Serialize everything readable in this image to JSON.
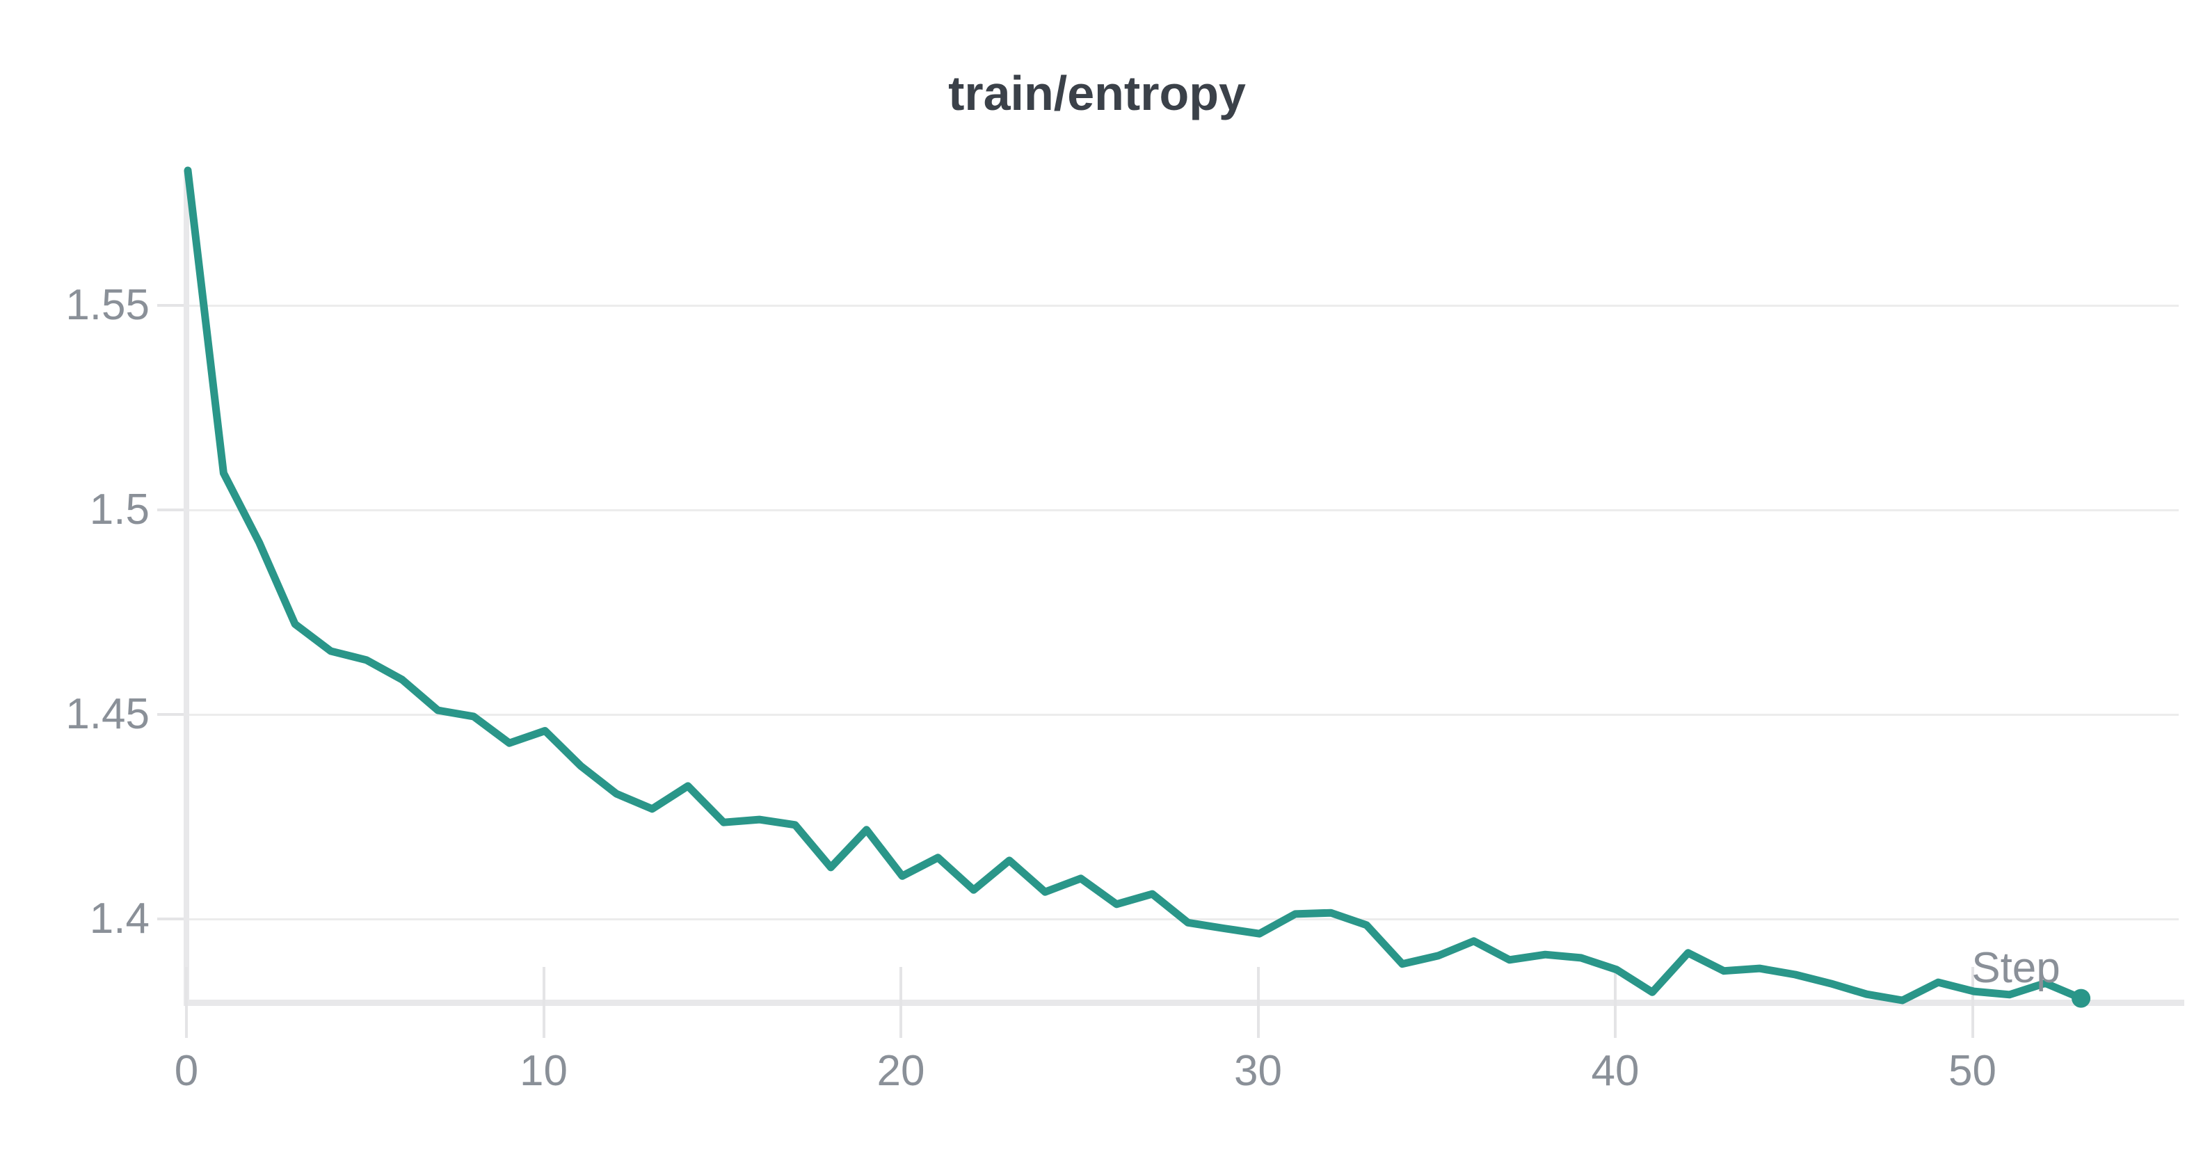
{
  "panel": {
    "background": "#ffffff",
    "title_color": "#3b4149",
    "axis_text_color": "#8a9098",
    "grid_color": "#ececec",
    "axis_line_color": "#e8e8ea",
    "tick_mark_color": "#e4e4e6"
  },
  "chart_data": {
    "type": "line",
    "title": "train/entropy",
    "xlabel": "Step",
    "ylabel": "",
    "legend": "none",
    "grid": "horizontal",
    "xlim": [
      0,
      55.7
    ],
    "ylim": [
      1.3785,
      1.5872
    ],
    "x_ticks": [
      0,
      10,
      20,
      30,
      40,
      50
    ],
    "x_tick_labels": [
      "0",
      "10",
      "20",
      "30",
      "40",
      "50"
    ],
    "y_ticks": [
      1.4,
      1.45,
      1.5,
      1.55
    ],
    "y_tick_labels": [
      "1.4",
      "1.45",
      "1.5",
      "1.55"
    ],
    "endpoint_marker": true,
    "series": [
      {
        "name": "train/entropy",
        "color": "#2a9689",
        "x": [
          0,
          1,
          2,
          3,
          4,
          5,
          6,
          7,
          8,
          9,
          10,
          11,
          12,
          13,
          14,
          15,
          16,
          17,
          18,
          19,
          20,
          21,
          22,
          23,
          24,
          25,
          26,
          27,
          28,
          29,
          30,
          31,
          32,
          33,
          34,
          35,
          36,
          37,
          38,
          39,
          40,
          41,
          42,
          43,
          44,
          45,
          46,
          47,
          48,
          49,
          50,
          51,
          52,
          53
        ],
        "y": [
          1.583,
          1.509,
          1.492,
          1.4721,
          1.4655,
          1.4633,
          1.4585,
          1.451,
          1.4495,
          1.443,
          1.446,
          1.4374,
          1.4306,
          1.4269,
          1.4325,
          1.4236,
          1.4243,
          1.423,
          1.4126,
          1.4218,
          1.4105,
          1.415,
          1.4071,
          1.4143,
          1.4066,
          1.4099,
          1.4036,
          1.4061,
          1.3991,
          1.3977,
          1.3964,
          1.4012,
          1.4015,
          1.3985,
          1.389,
          1.391,
          1.3946,
          1.39,
          1.3913,
          1.3905,
          1.3876,
          1.3821,
          1.3917,
          1.3873,
          1.3879,
          1.3864,
          1.3842,
          1.3816,
          1.3801,
          1.3845,
          1.3823,
          1.3815,
          1.3843,
          1.3806
        ]
      }
    ]
  }
}
